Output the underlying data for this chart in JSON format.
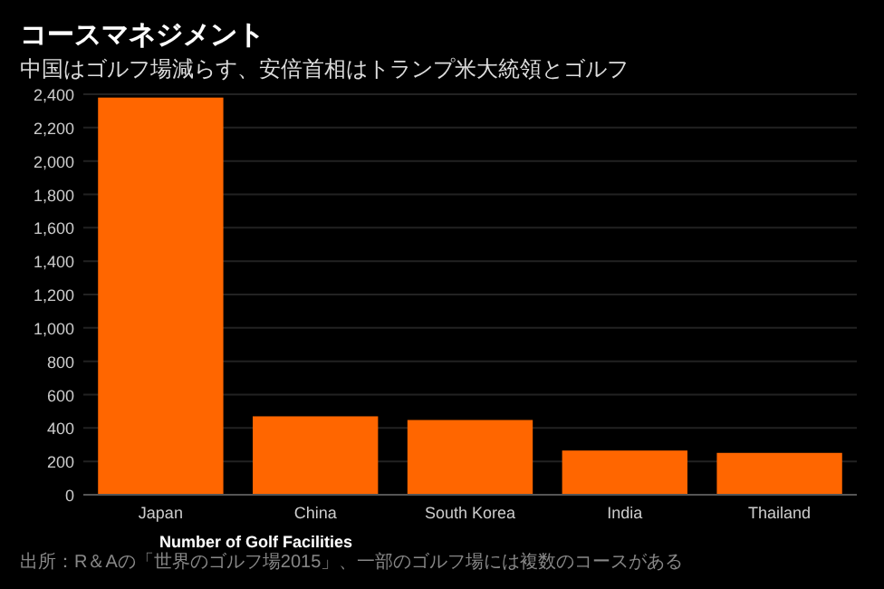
{
  "chart_data": {
    "type": "bar",
    "title": "コースマネジメント",
    "subtitle": "中国はゴルフ場減らす、安倍首相はトランプ米大統領とゴルフ",
    "categories": [
      "Japan",
      "China",
      "South Korea",
      "India",
      "Thailand"
    ],
    "values": [
      2380,
      470,
      448,
      265,
      251
    ],
    "color": "#ff6600",
    "xlabel": "Number of Golf Facilities",
    "ylim": [
      0,
      2400
    ],
    "yticks": [
      {
        "value": 0,
        "label": "0"
      },
      {
        "value": 200,
        "label": "200"
      },
      {
        "value": 400,
        "label": "400"
      },
      {
        "value": 600,
        "label": "600"
      },
      {
        "value": 800,
        "label": "800"
      },
      {
        "value": 1000,
        "label": "1,000"
      },
      {
        "value": 1200,
        "label": "1,200"
      },
      {
        "value": 1400,
        "label": "1,400"
      },
      {
        "value": 1600,
        "label": "1,600"
      },
      {
        "value": 1800,
        "label": "1,800"
      },
      {
        "value": 2000,
        "label": "2,000"
      },
      {
        "value": 2200,
        "label": "2,200"
      },
      {
        "value": 2400,
        "label": "2,400"
      }
    ],
    "grid": "y",
    "annotations": [
      "出所：R＆Aの「世界のゴルフ場2015」、一部のゴルフ場には複数のコースがある"
    ]
  }
}
